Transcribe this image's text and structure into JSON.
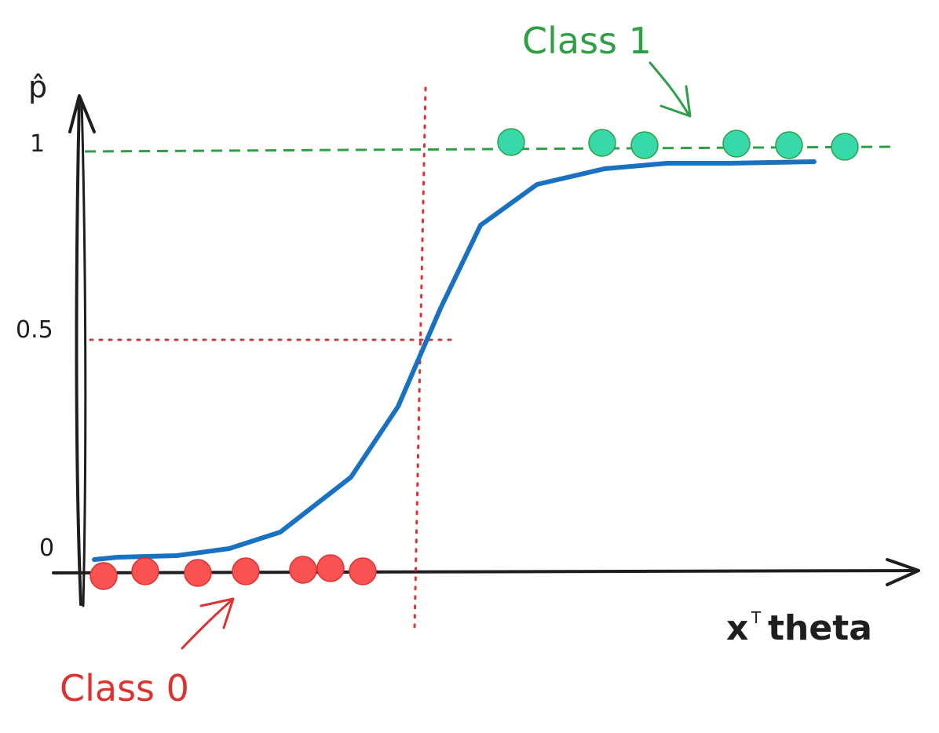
{
  "labels": {
    "y_axis": "p̂",
    "y_tick_1": "1",
    "y_tick_half": "0.5",
    "y_tick_0": "0",
    "x_axis_base": "x",
    "x_axis_sup": "T",
    "x_axis_rest": "theta",
    "class1": "Class 1",
    "class0": "Class 0"
  },
  "colors": {
    "axis": "#1e1e1e",
    "curve": "#1971c2",
    "class1": "#2f9e44",
    "class1_fill": "#38d9a9",
    "class0": "#e03131",
    "class0_fill": "#fa5252",
    "threshold": "#e03131"
  },
  "elements": {
    "y_axis": "y-axis",
    "x_axis": "x-axis",
    "sigmoid_curve": "sigmoid-curve",
    "class1_points": 6,
    "class0_points": 7
  }
}
